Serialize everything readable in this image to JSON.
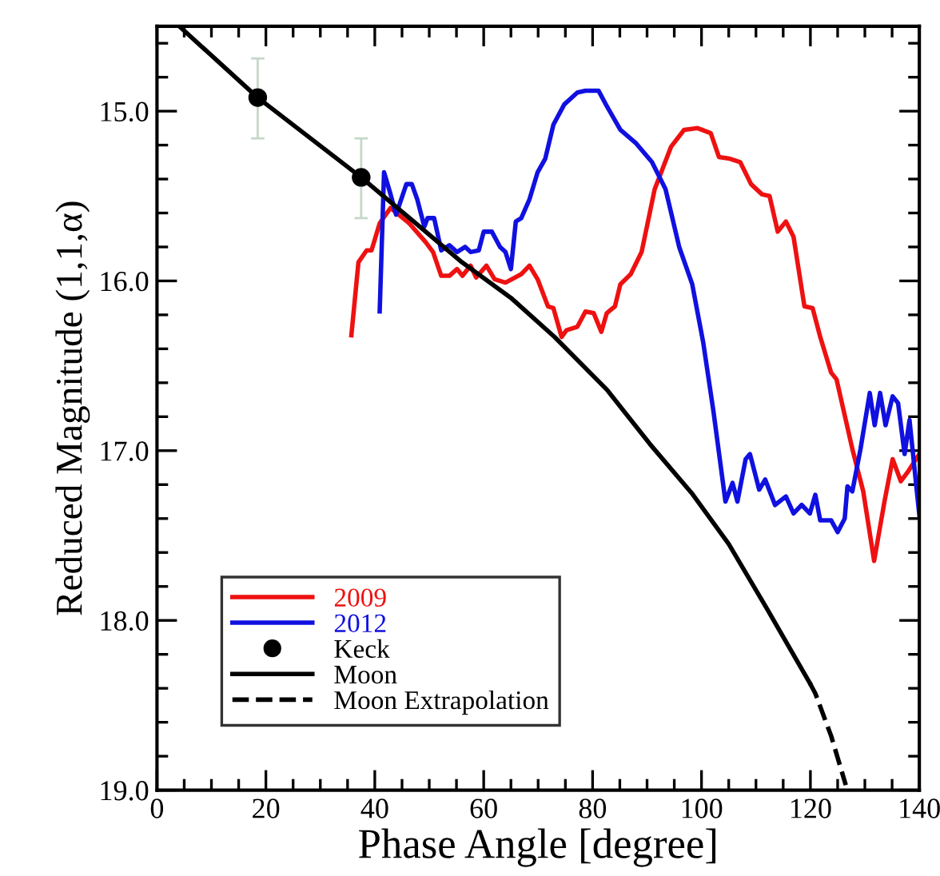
{
  "chart_data": {
    "type": "line",
    "xlabel": "Phase Angle [degree]",
    "ylabel": "Reduced Magnitude (1,1,α)",
    "xlim": [
      0,
      140
    ],
    "ylim": [
      19.0,
      14.5
    ],
    "xticks": [
      0,
      {
        "value": 5,
        "label": null
      },
      20,
      {
        "value": 10,
        "label": null
      },
      {
        "value": 15,
        "label": null
      },
      {
        "value": 25,
        "label": null
      },
      {
        "value": 30,
        "label": null
      },
      {
        "value": 35,
        "label": null
      },
      40,
      {
        "value": 45,
        "label": null
      },
      {
        "value": 50,
        "label": null
      },
      {
        "value": 55,
        "label": null
      },
      60,
      {
        "value": 65,
        "label": null
      },
      {
        "value": 70,
        "label": null
      },
      {
        "value": 75,
        "label": null
      },
      80,
      {
        "value": 85,
        "label": null
      },
      {
        "value": 90,
        "label": null
      },
      {
        "value": 95,
        "label": null
      },
      100,
      {
        "value": 105,
        "label": null
      },
      {
        "value": 110,
        "label": null
      },
      {
        "value": 115,
        "label": null
      },
      120,
      {
        "value": 125,
        "label": null
      },
      {
        "value": 130,
        "label": null
      },
      {
        "value": 135,
        "label": null
      },
      140
    ],
    "yticks": [
      {
        "value": 14.6,
        "label": null
      },
      {
        "value": 14.8,
        "label": null
      },
      {
        "value": 15.0,
        "label": "15.0"
      },
      {
        "value": 15.2,
        "label": null
      },
      {
        "value": 15.4,
        "label": null
      },
      {
        "value": 15.6,
        "label": null
      },
      {
        "value": 15.8,
        "label": null
      },
      {
        "value": 16.0,
        "label": "16.0"
      },
      {
        "value": 16.2,
        "label": null
      },
      {
        "value": 16.4,
        "label": null
      },
      {
        "value": 16.6,
        "label": null
      },
      {
        "value": 16.8,
        "label": null
      },
      {
        "value": 17.0,
        "label": "17.0"
      },
      {
        "value": 17.2,
        "label": null
      },
      {
        "value": 17.4,
        "label": null
      },
      {
        "value": 17.6,
        "label": null
      },
      {
        "value": 17.8,
        "label": null
      },
      {
        "value": 18.0,
        "label": "18.0"
      },
      {
        "value": 18.2,
        "label": null
      },
      {
        "value": 18.4,
        "label": null
      },
      {
        "value": 18.6,
        "label": null
      },
      {
        "value": 18.8,
        "label": null
      },
      {
        "value": 19.0,
        "label": "19.0"
      }
    ],
    "grid": false,
    "legend": "bottom left",
    "series": [
      {
        "name": "2009",
        "color": "#ee1111",
        "line_style": "solid",
        "marker": "none",
        "x": [
          35.7,
          37.0,
          38.5,
          39.4,
          40.9,
          42.9,
          44.4,
          46.3,
          49.3,
          50.7,
          52.2,
          53.7,
          55.1,
          56.1,
          57.6,
          58.6,
          60.5,
          62.0,
          64.0,
          66.9,
          68.4,
          69.9,
          71.8,
          72.8,
          74.3,
          75.2,
          77.2,
          78.7,
          80.2,
          81.6,
          82.6,
          84.1,
          85.1,
          87.0,
          89.0,
          91.4,
          94.4,
          96.8,
          99.3,
          101.7,
          103.2,
          105.2,
          107.1,
          109.1,
          111.1,
          112.5,
          114.0,
          115.5,
          116.9,
          118.9,
          120.4,
          121.8,
          123.8,
          124.8,
          127.7,
          129.7,
          131.7,
          133.6,
          135.1,
          136.6,
          138.0,
          140.0
        ],
        "values": [
          16.32,
          15.89,
          15.82,
          15.82,
          15.66,
          15.57,
          15.61,
          15.66,
          15.77,
          15.83,
          15.97,
          15.97,
          15.93,
          15.97,
          15.91,
          15.98,
          15.91,
          15.99,
          16.01,
          15.96,
          15.91,
          15.99,
          16.15,
          16.16,
          16.33,
          16.29,
          16.27,
          16.18,
          16.19,
          16.3,
          16.19,
          16.15,
          16.02,
          15.96,
          15.83,
          15.46,
          15.21,
          15.11,
          15.1,
          15.13,
          15.27,
          15.28,
          15.3,
          15.43,
          15.49,
          15.5,
          15.71,
          15.65,
          15.74,
          16.15,
          16.16,
          16.33,
          16.54,
          16.58,
          16.99,
          17.24,
          17.65,
          17.3,
          17.05,
          17.18,
          17.12,
          17.02
        ]
      },
      {
        "name": "2012",
        "color": "#1010e0",
        "line_style": "solid",
        "marker": "none",
        "x": [
          40.9,
          41.7,
          42.9,
          43.9,
          45.8,
          46.8,
          47.8,
          49.1,
          49.7,
          50.9,
          52.2,
          53.7,
          55.1,
          56.6,
          57.6,
          59.1,
          60.0,
          61.5,
          63.0,
          64.0,
          65.0,
          65.9,
          66.9,
          68.4,
          69.9,
          71.3,
          72.8,
          74.8,
          77.2,
          78.7,
          81.1,
          82.6,
          85.1,
          88.0,
          90.9,
          93.4,
          95.9,
          98.3,
          100.3,
          102.2,
          104.4,
          105.7,
          106.6,
          108.1,
          108.9,
          110.6,
          111.7,
          113.5,
          115.5,
          116.9,
          118.4,
          119.9,
          120.9,
          121.8,
          123.8,
          125.0,
          126.3,
          126.8,
          127.7,
          129.2,
          130.9,
          131.8,
          132.8,
          133.8,
          135.1,
          136.1,
          137.3,
          138.2,
          140.0
        ],
        "values": [
          16.18,
          15.36,
          15.49,
          15.61,
          15.43,
          15.43,
          15.52,
          15.68,
          15.63,
          15.63,
          15.82,
          15.79,
          15.83,
          15.8,
          15.83,
          15.82,
          15.71,
          15.71,
          15.8,
          15.83,
          15.93,
          15.65,
          15.63,
          15.52,
          15.36,
          15.28,
          15.08,
          14.96,
          14.89,
          14.88,
          14.88,
          14.97,
          15.11,
          15.19,
          15.3,
          15.46,
          15.8,
          16.02,
          16.36,
          16.77,
          17.3,
          17.19,
          17.3,
          17.05,
          17.02,
          17.23,
          17.17,
          17.32,
          17.27,
          17.37,
          17.32,
          17.37,
          17.26,
          17.41,
          17.41,
          17.48,
          17.4,
          17.21,
          17.24,
          16.99,
          16.66,
          16.85,
          16.66,
          16.85,
          16.68,
          16.72,
          17.02,
          16.82,
          17.38
        ]
      },
      {
        "name": "Keck",
        "color": "#000000",
        "type": "scatter",
        "marker": "circle",
        "x": [
          18.5,
          37.5
        ],
        "values": [
          14.92,
          15.39
        ],
        "errors": [
          [
            14.69,
            15.16
          ],
          [
            15.16,
            15.63
          ]
        ]
      },
      {
        "name": "Moon",
        "color": "#000000",
        "line_style": "solid",
        "marker": "none",
        "x": [
          4.1,
          18.5,
          37.5,
          56.0,
          65.0,
          73.0,
          82.6,
          90.5,
          98.2,
          105.0,
          112.0,
          119.9
        ],
        "values": [
          14.5,
          14.92,
          15.39,
          15.89,
          16.1,
          16.33,
          16.64,
          16.96,
          17.25,
          17.55,
          17.93,
          18.37
        ]
      },
      {
        "name": "Moon Extrapolation",
        "color": "#000000",
        "line_style": "dashed",
        "marker": "none",
        "x": [
          119.9,
          120.9,
          123.8,
          126.5
        ],
        "values": [
          18.37,
          18.43,
          18.68,
          18.97
        ]
      }
    ]
  }
}
